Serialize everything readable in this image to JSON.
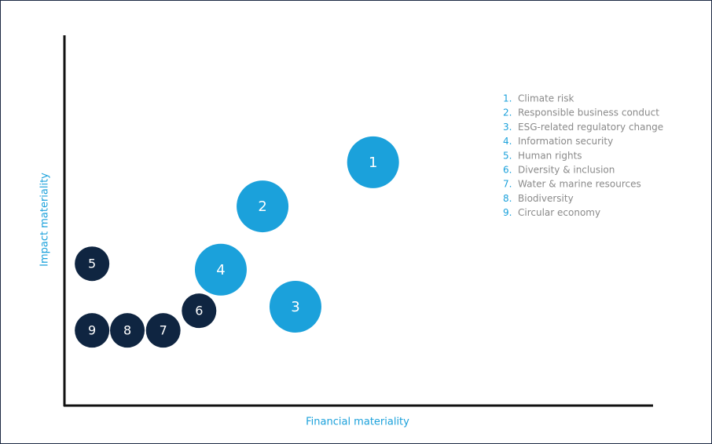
{
  "chart_data": {
    "type": "scatter",
    "xlabel": "Financial materiality",
    "ylabel": "Impact materiality",
    "xlim": [
      0,
      100
    ],
    "ylim": [
      0,
      100
    ],
    "series": [
      {
        "color": "#1ba1db",
        "labels": [
          "1",
          "2",
          "3",
          "4"
        ],
        "x": [
          52.5,
          33.7,
          39.3,
          26.6
        ],
        "values": [
          65.7,
          53.8,
          26.7,
          36.7
        ]
      },
      {
        "color": "#0f2541",
        "labels": [
          "5",
          "6",
          "7",
          "8",
          "9"
        ],
        "x": [
          4.7,
          22.9,
          16.8,
          10.7,
          4.7
        ],
        "values": [
          38.3,
          25.6,
          20.3,
          20.3,
          20.3
        ]
      }
    ],
    "legend": [
      {
        "number": "1.",
        "text": "Climate risk"
      },
      {
        "number": "2.",
        "text": "Responsible business conduct"
      },
      {
        "number": "3.",
        "text": "ESG-related regulatory change"
      },
      {
        "number": "4.",
        "text": "Information security"
      },
      {
        "number": "5.",
        "text": "Human rights"
      },
      {
        "number": "6.",
        "text": "Diversity & inclusion"
      },
      {
        "number": "7.",
        "text": "Water & marine resources"
      },
      {
        "number": "8.",
        "text": "Biodiversity"
      },
      {
        "number": "9.",
        "text": "Circular economy"
      }
    ],
    "legend_number_color": "#1ba1db",
    "legend_text_color": "#8a8a8a"
  }
}
